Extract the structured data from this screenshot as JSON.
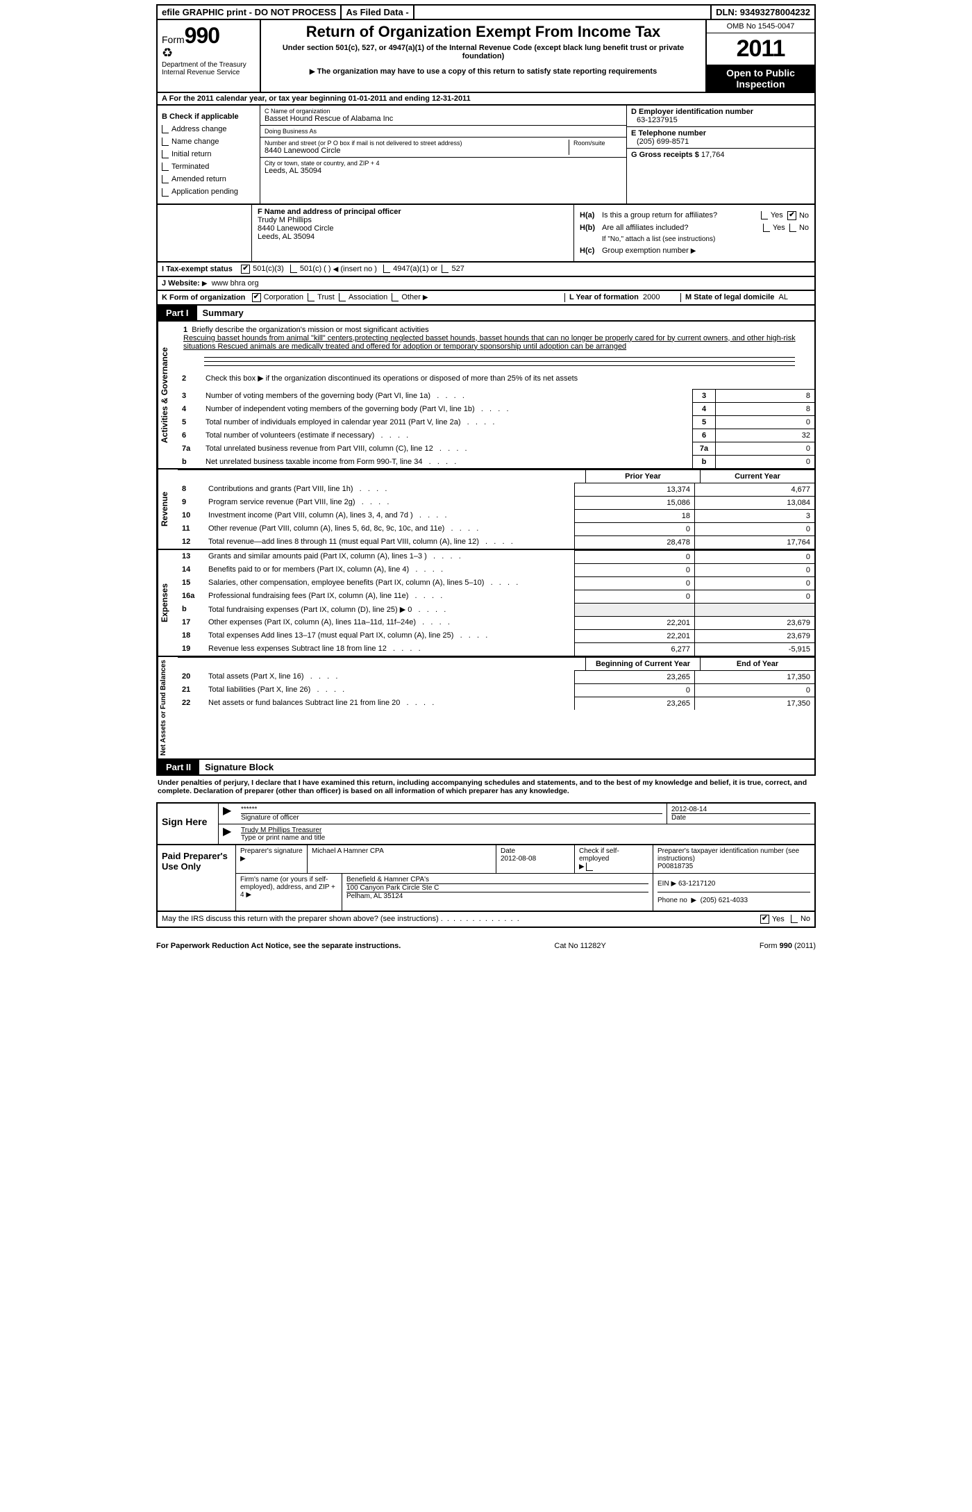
{
  "topbar": {
    "efile": "efile GRAPHIC print - DO NOT PROCESS",
    "asfiled": "As Filed Data -",
    "dln_label": "DLN:",
    "dln": "93493278004232"
  },
  "header": {
    "form_label": "Form",
    "form_num": "990",
    "dept1": "Department of the Treasury",
    "dept2": "Internal Revenue Service",
    "title": "Return of Organization Exempt From Income Tax",
    "subtitle": "Under section 501(c), 527, or 4947(a)(1) of the Internal Revenue Code (except black lung benefit trust or private foundation)",
    "note": "The organization may have to use a copy of this return to satisfy state reporting requirements",
    "omb": "OMB No  1545-0047",
    "year": "2011",
    "open": "Open to Public Inspection"
  },
  "rowA": "A  For the 2011 calendar year, or tax year beginning 01-01-2011     and ending 12-31-2011",
  "colB": {
    "label": "B  Check if applicable",
    "items": [
      "Address change",
      "Name change",
      "Initial return",
      "Terminated",
      "Amended return",
      "Application pending"
    ]
  },
  "colC": {
    "name_lbl": "C Name of organization",
    "name": "Basset Hound Rescue of Alabama Inc",
    "dba_lbl": "Doing Business As",
    "dba": "",
    "addr_lbl": "Number and street (or P O  box if mail is not delivered to street address)",
    "room_lbl": "Room/suite",
    "addr": "8440 Lanewood Circle",
    "city_lbl": "City or town, state or country, and ZIP + 4",
    "city": "Leeds, AL  35094"
  },
  "colD": {
    "ein_lbl": "D Employer identification number",
    "ein": "63-1237915",
    "tel_lbl": "E Telephone number",
    "tel": "(205) 699-8571",
    "gross_lbl": "G Gross receipts $",
    "gross": "17,764"
  },
  "f": {
    "lbl": "F  Name and address of principal officer",
    "name": "Trudy M Phillips",
    "addr": "8440 Lanewood Circle",
    "city": "Leeds, AL  35094"
  },
  "h": {
    "a_lbl": "Is this a group return for affiliates?",
    "b_lbl": "Are all affiliates included?",
    "b_note": "If \"No,\" attach a list  (see instructions)",
    "c_lbl": "Group exemption number"
  },
  "rowI": {
    "lbl": "I   Tax-exempt status",
    "opts": [
      "501(c)(3)",
      "501(c) (   )",
      "(insert no )",
      "4947(a)(1) or",
      "527"
    ]
  },
  "rowJ": {
    "lbl": "J   Website:",
    "val": "www bhra org"
  },
  "rowK": {
    "lbl": "K Form of organization",
    "opts": [
      "Corporation",
      "Trust",
      "Association",
      "Other"
    ],
    "yof_lbl": "L Year of formation",
    "yof": "2000",
    "state_lbl": "M State of legal domicile",
    "state": "AL"
  },
  "partI": {
    "tag": "Part I",
    "title": "Summary"
  },
  "sec_ag": {
    "vlabel": "Activities & Governance",
    "l1_lbl": "Briefly describe the organization's mission or most significant activities",
    "l1_txt": "Rescuing basset hounds from animal \"kill\" centers,protecting neglected basset hounds, basset hounds that can no longer be properly cared for by current owners, and other high-risk situations  Rescued animals are medically treated and offered for adoption or temporary sponsorship until adoption can be arranged",
    "l2": "Check this box ▶   if the organization discontinued its operations or disposed of more than 25% of its net assets",
    "rows": [
      {
        "n": "3",
        "t": "Number of voting members of the governing body (Part VI, line 1a)",
        "v": "8"
      },
      {
        "n": "4",
        "t": "Number of independent voting members of the governing body (Part VI, line 1b)",
        "v": "8"
      },
      {
        "n": "5",
        "t": "Total number of individuals employed in calendar year 2011 (Part V, line 2a)",
        "v": "0"
      },
      {
        "n": "6",
        "t": "Total number of volunteers (estimate if necessary)",
        "v": "32"
      },
      {
        "n": "7a",
        "t": "Total unrelated business revenue from Part VIII, column (C), line 12",
        "v": "0"
      },
      {
        "n": "b",
        "t": "Net unrelated business taxable income from Form 990-T, line 34",
        "v": "0"
      }
    ]
  },
  "sec_rev": {
    "vlabel": "Revenue",
    "head": [
      "Prior Year",
      "Current Year"
    ],
    "rows": [
      {
        "n": "8",
        "t": "Contributions and grants (Part VIII, line 1h)",
        "p": "13,374",
        "c": "4,677"
      },
      {
        "n": "9",
        "t": "Program service revenue (Part VIII, line 2g)",
        "p": "15,086",
        "c": "13,084"
      },
      {
        "n": "10",
        "t": "Investment income (Part VIII, column (A), lines 3, 4, and 7d )",
        "p": "18",
        "c": "3"
      },
      {
        "n": "11",
        "t": "Other revenue (Part VIII, column (A), lines 5, 6d, 8c, 9c, 10c, and 11e)",
        "p": "0",
        "c": "0"
      },
      {
        "n": "12",
        "t": "Total revenue—add lines 8 through 11 (must equal Part VIII, column (A), line 12)",
        "p": "28,478",
        "c": "17,764"
      }
    ]
  },
  "sec_exp": {
    "vlabel": "Expenses",
    "rows": [
      {
        "n": "13",
        "t": "Grants and similar amounts paid (Part IX, column (A), lines 1–3 )",
        "p": "0",
        "c": "0"
      },
      {
        "n": "14",
        "t": "Benefits paid to or for members (Part IX, column (A), line 4)",
        "p": "0",
        "c": "0"
      },
      {
        "n": "15",
        "t": "Salaries, other compensation, employee benefits (Part IX, column (A), lines 5–10)",
        "p": "0",
        "c": "0"
      },
      {
        "n": "16a",
        "t": "Professional fundraising fees (Part IX, column (A), line 11e)",
        "p": "0",
        "c": "0"
      },
      {
        "n": "b",
        "t": "Total fundraising expenses (Part IX, column (D), line 25) ▶ 0",
        "p": "",
        "c": ""
      },
      {
        "n": "17",
        "t": "Other expenses (Part IX, column (A), lines 11a–11d, 11f–24e)",
        "p": "22,201",
        "c": "23,679"
      },
      {
        "n": "18",
        "t": "Total expenses  Add lines 13–17 (must equal Part IX, column (A), line 25)",
        "p": "22,201",
        "c": "23,679"
      },
      {
        "n": "19",
        "t": "Revenue less expenses  Subtract line 18 from line 12",
        "p": "6,277",
        "c": "-5,915"
      }
    ]
  },
  "sec_net": {
    "vlabel": "Net Assets or Fund Balances",
    "head": [
      "Beginning of Current Year",
      "End of Year"
    ],
    "rows": [
      {
        "n": "20",
        "t": "Total assets (Part X, line 16)",
        "p": "23,265",
        "c": "17,350"
      },
      {
        "n": "21",
        "t": "Total liabilities (Part X, line 26)",
        "p": "0",
        "c": "0"
      },
      {
        "n": "22",
        "t": "Net assets or fund balances  Subtract line 21 from line 20",
        "p": "23,265",
        "c": "17,350"
      }
    ]
  },
  "partII": {
    "tag": "Part II",
    "title": "Signature Block"
  },
  "perjury": "Under penalties of perjury, I declare that I have examined this return, including accompanying schedules and statements, and to the best of my knowledge and belief, it is true, correct, and complete. Declaration of preparer (other than officer) is based on all information of which preparer has any knowledge.",
  "sign": {
    "here": "Sign Here",
    "stars": "******",
    "sig_lbl": "Signature of officer",
    "date": "2012-08-14",
    "date_lbl": "Date",
    "name": "Trudy M Phillips Treasurer",
    "name_lbl": "Type or print name and title"
  },
  "prep": {
    "lbl": "Paid Preparer's Use Only",
    "sig_lbl": "Preparer's signature",
    "name": "Michael A Hamner CPA",
    "date_lbl": "Date",
    "date": "2012-08-08",
    "self_lbl": "Check if self-employed",
    "ptin_lbl": "Preparer's taxpayer identification number (see instructions)",
    "ptin": "P00818735",
    "firm_lbl": "Firm's name (or yours if self-employed), address, and ZIP + 4",
    "firm": "Benefield & Hamner CPA's",
    "firm_addr": "100 Canyon Park Circle Ste C",
    "firm_city": "Pelham, AL  35124",
    "ein_lbl": "EIN",
    "ein": "63-1217120",
    "phone_lbl": "Phone no",
    "phone": "(205) 621-4033"
  },
  "discuss": "May the IRS discuss this return with the preparer shown above? (see instructions)",
  "footer": {
    "left": "For Paperwork Reduction Act Notice, see the separate instructions.",
    "mid": "Cat No  11282Y",
    "right": "Form 990 (2011)"
  }
}
